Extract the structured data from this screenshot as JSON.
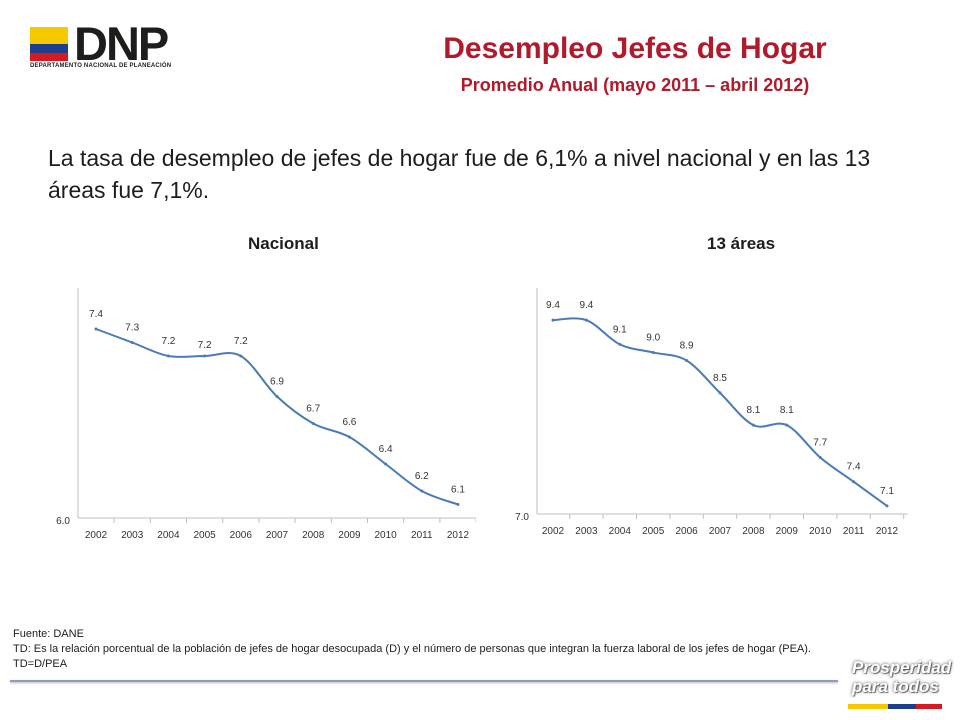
{
  "logo": {
    "text": "DNP",
    "subtitle": "DEPARTAMENTO NACIONAL DE PLANEACIÓN",
    "colors": [
      "#f6c800",
      "#1e3e8f",
      "#d71920"
    ]
  },
  "header": {
    "title": "Desempleo Jefes de Hogar",
    "subtitle": "Promedio Anual (mayo 2011 – abril 2012)"
  },
  "intro": "La tasa de desempleo de jefes de hogar fue de 6,1% a nivel nacional y en las 13 áreas fue 7,1%.",
  "footer": {
    "source": "Fuente: DANE",
    "note": "TD:  Es la relación porcentual de la población de jefes de hogar desocupada (D) y el número de personas que integran la fuerza laboral de los jefes de hogar (PEA). TD=D/PEA"
  },
  "badge": {
    "line1": "Prosperidad",
    "line2": "para todos"
  },
  "colors": {
    "title": "#b11a2a",
    "line": "#4a7bb7"
  },
  "chart_data": [
    {
      "type": "line",
      "title": "Nacional",
      "categories": [
        "2002",
        "2003",
        "2004",
        "2005",
        "2006",
        "2007",
        "2008",
        "2009",
        "2010",
        "2011",
        "2012"
      ],
      "values": [
        7.4,
        7.3,
        7.2,
        7.2,
        7.2,
        6.9,
        6.7,
        6.6,
        6.4,
        6.2,
        6.1
      ],
      "value_labels": [
        "7.4",
        "7.3",
        "7.2",
        "7.2",
        "7.2",
        "6.9",
        "6.7",
        "6.6",
        "6.4",
        "6.2",
        "6.1"
      ],
      "ylim": [
        6.0,
        7.6
      ],
      "ytick_label": "6.0",
      "grid": false
    },
    {
      "type": "line",
      "title": "13 áreas",
      "categories": [
        "2002",
        "2003",
        "2004",
        "2005",
        "2006",
        "2007",
        "2008",
        "2009",
        "2010",
        "2011",
        "2012"
      ],
      "values": [
        9.4,
        9.4,
        9.1,
        9.0,
        8.9,
        8.5,
        8.1,
        8.1,
        7.7,
        7.4,
        7.1
      ],
      "value_labels": [
        "9.4",
        "9.4",
        "9.1",
        "9.0",
        "8.9",
        "8.5",
        "8.1",
        "8.1",
        "7.7",
        "7.4",
        "7.1"
      ],
      "ylim": [
        7.0,
        9.6
      ],
      "ytick_label": "7.0",
      "grid": false
    }
  ]
}
